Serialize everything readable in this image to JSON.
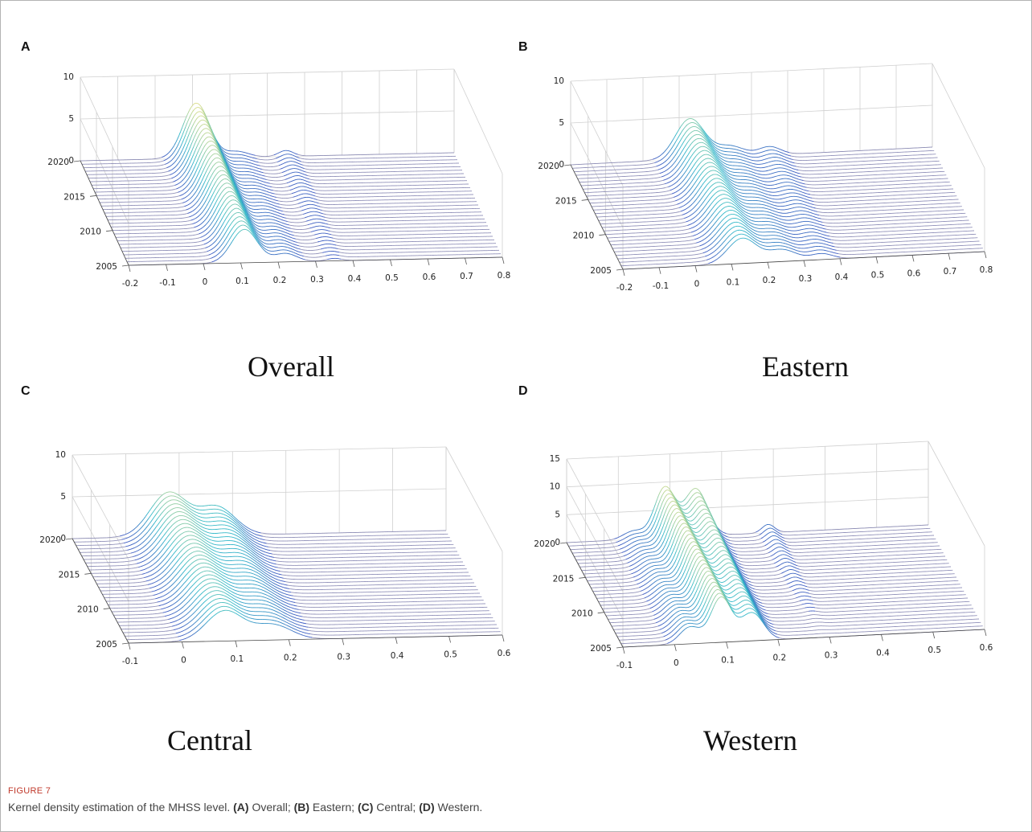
{
  "figure": {
    "label": "FIGURE 7",
    "caption_lead": "Kernel density estimation of the MHSS level. ",
    "caption_parts": [
      {
        "letter": "(A)",
        "text": " Overall; "
      },
      {
        "letter": "(B)",
        "text": " Eastern; "
      },
      {
        "letter": "(C)",
        "text": " Central; "
      },
      {
        "letter": "(D)",
        "text": " Western."
      }
    ]
  },
  "panels": [
    {
      "letter": "A",
      "caption": "Overall"
    },
    {
      "letter": "B",
      "caption": "Eastern"
    },
    {
      "letter": "C",
      "caption": "Central"
    },
    {
      "letter": "D",
      "caption": "Western"
    }
  ],
  "colors": {
    "surface_low": "#3b4fc0",
    "surface_mid": "#2fb8c9",
    "surface_high": "#f5e27a",
    "flat_mesh": "#8f8fb8",
    "grid": "#d0d0d0"
  },
  "chart_data": [
    {
      "type": "surface3d",
      "title": "Overall",
      "x": {
        "ticks": [
          "-0.2",
          "-0.1",
          "0",
          "0.1",
          "0.2",
          "0.3",
          "0.4",
          "0.5",
          "0.6",
          "0.7",
          "0.8"
        ],
        "range": [
          -0.2,
          0.8
        ]
      },
      "y": {
        "ticks": [
          "2005",
          "2010",
          "2015",
          "2020"
        ],
        "range": [
          2005,
          2020
        ]
      },
      "z": {
        "ticks": [
          "0",
          "5",
          "10"
        ],
        "range": [
          0,
          10
        ]
      },
      "peaks": [
        {
          "center": 0.11,
          "width": 0.035,
          "height_start": 4.0,
          "height_end": 6.6
        },
        {
          "center": 0.22,
          "width": 0.03,
          "height_start": 1.0,
          "height_end": 0.7
        },
        {
          "center": 0.35,
          "width": 0.02,
          "height_start": 0.3,
          "height_end": 0.7
        }
      ]
    },
    {
      "type": "surface3d",
      "title": "Eastern",
      "x": {
        "ticks": [
          "-0.2",
          "-0.1",
          "0",
          "0.1",
          "0.2",
          "0.3",
          "0.4",
          "0.5",
          "0.6",
          "0.7",
          "0.8"
        ],
        "range": [
          -0.2,
          0.8
        ]
      },
      "y": {
        "ticks": [
          "2005",
          "2010",
          "2015",
          "2020"
        ],
        "range": [
          2005,
          2020
        ]
      },
      "z": {
        "ticks": [
          "0",
          "5",
          "10"
        ],
        "range": [
          0,
          10
        ]
      },
      "peaks": [
        {
          "center": 0.13,
          "width": 0.04,
          "height_start": 3.0,
          "height_end": 4.8
        },
        {
          "center": 0.24,
          "width": 0.04,
          "height_start": 1.4,
          "height_end": 1.3
        },
        {
          "center": 0.35,
          "width": 0.03,
          "height_start": 0.7,
          "height_end": 1.0
        }
      ]
    },
    {
      "type": "surface3d",
      "title": "Central",
      "x": {
        "ticks": [
          "-0.1",
          "0",
          "0.1",
          "0.2",
          "0.3",
          "0.4",
          "0.5",
          "0.6"
        ],
        "range": [
          -0.1,
          0.6
        ]
      },
      "y": {
        "ticks": [
          "2005",
          "2010",
          "2015",
          "2020"
        ],
        "range": [
          2005,
          2020
        ]
      },
      "z": {
        "ticks": [
          "0",
          "5",
          "10"
        ],
        "range": [
          0,
          10
        ]
      },
      "peaks": [
        {
          "center": 0.08,
          "width": 0.035,
          "height_start": 3.6,
          "height_end": 5.2
        },
        {
          "center": 0.17,
          "width": 0.035,
          "height_start": 1.8,
          "height_end": 3.4
        }
      ]
    },
    {
      "type": "surface3d",
      "title": "Western",
      "x": {
        "ticks": [
          "-0.1",
          "0",
          "0.1",
          "0.2",
          "0.3",
          "0.4",
          "0.5",
          "0.6"
        ],
        "range": [
          -0.1,
          0.6
        ]
      },
      "y": {
        "ticks": [
          "2005",
          "2010",
          "2015",
          "2020"
        ],
        "range": [
          2005,
          2020
        ]
      },
      "z": {
        "ticks": [
          "0",
          "5",
          "10",
          "15"
        ],
        "range": [
          0,
          15
        ]
      },
      "peaks": [
        {
          "center": 0.03,
          "width": 0.02,
          "height_start": 3.0,
          "height_end": 1.5
        },
        {
          "center": 0.09,
          "width": 0.02,
          "height_start": 8.0,
          "height_end": 9.0
        },
        {
          "center": 0.15,
          "width": 0.022,
          "height_start": 5.0,
          "height_end": 8.5
        },
        {
          "center": 0.29,
          "width": 0.012,
          "height_start": 0.0,
          "height_end": 1.5
        }
      ]
    }
  ]
}
